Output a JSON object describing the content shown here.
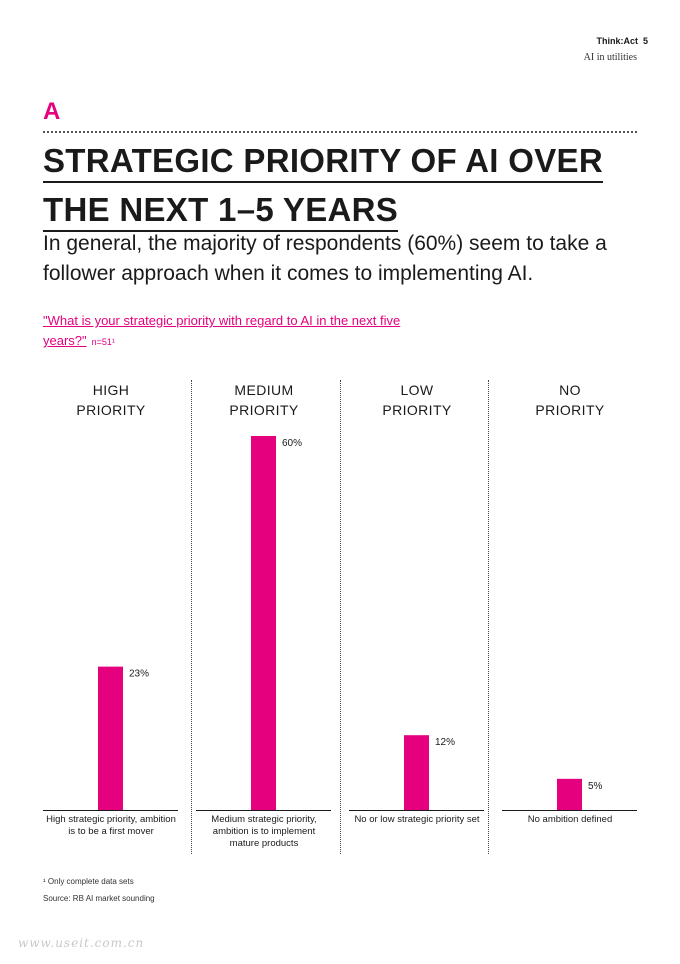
{
  "header": {
    "brand": "Think:Act",
    "page_number": "5",
    "section": "AI in utilities"
  },
  "section_letter": "A",
  "title_lines": [
    "STRATEGIC PRIORITY OF AI OVER",
    "THE NEXT 1–5 YEARS"
  ],
  "subtitle": "In general, the majority of respondents (60%) seem to take a follower approach when it comes to implementing AI.",
  "question": {
    "text": "\"What is your strategic priority with regard to AI in the next five years?\"",
    "sample": "n=51¹"
  },
  "colors": {
    "accent": "#e5007d",
    "text": "#1a1a1a"
  },
  "chart_data": {
    "type": "bar",
    "categories": [
      "HIGH PRIORITY",
      "MEDIUM PRIORITY",
      "LOW PRIORITY",
      "NO PRIORITY"
    ],
    "category_lines": [
      [
        "HIGH",
        "PRIORITY"
      ],
      [
        "MEDIUM",
        "PRIORITY"
      ],
      [
        "LOW",
        "PRIORITY"
      ],
      [
        "NO",
        "PRIORITY"
      ]
    ],
    "values": [
      23,
      60,
      12,
      5
    ],
    "value_labels": [
      "23%",
      "60%",
      "12%",
      "5%"
    ],
    "unit": "%",
    "descriptions": [
      "High strategic priority, ambition is to be a first mover",
      "Medium strategic priority, ambition is to implement mature products",
      "No or low strategic priority set",
      "No ambition defined"
    ],
    "ylim": [
      0,
      60
    ],
    "grid": false,
    "legend": "none"
  },
  "footnote": "¹ Only complete data sets",
  "source": "Source: RB AI market sounding",
  "watermark": "www.useit.com.cn"
}
